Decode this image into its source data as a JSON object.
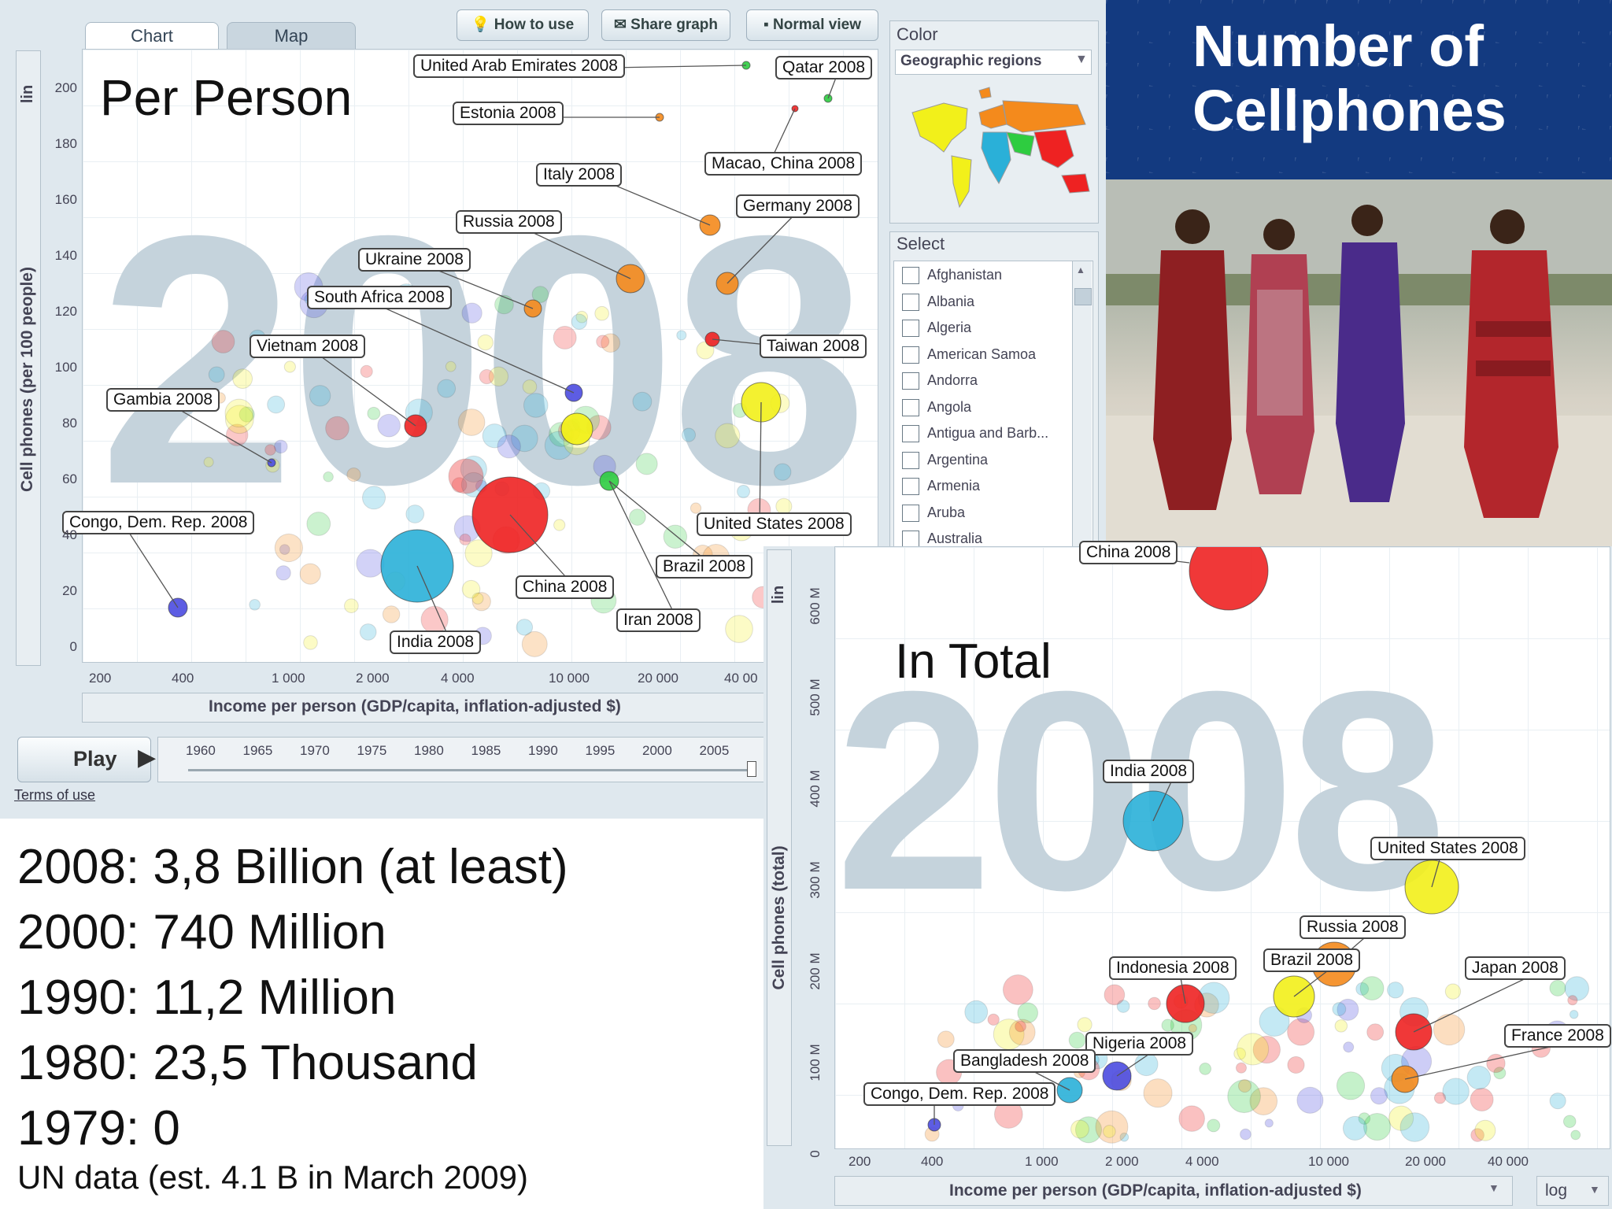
{
  "top_app": {
    "tabs": [
      "Chart",
      "Map"
    ],
    "toolbar": {
      "how_to_use": "How to use",
      "share_graph": "Share graph",
      "normal_view": "Normal view"
    },
    "title": "Per Person",
    "year_watermark": "2008",
    "y_axis_label": "Cell phones (per 100 people)",
    "y_scale": "lin",
    "x_axis_label": "Income per person (GDP/capita, inflation-adjusted $)",
    "y_ticks": [
      "200",
      "180",
      "160",
      "140",
      "120",
      "100",
      "80",
      "60",
      "40",
      "20",
      "0"
    ],
    "x_ticks": [
      "200",
      "400",
      "1 000",
      "2 000",
      "4 000",
      "10 000",
      "20 000",
      "40 00"
    ],
    "play_label": "Play",
    "timeline_years": [
      "1960",
      "1965",
      "1970",
      "1975",
      "1980",
      "1985",
      "1990",
      "1995",
      "2000",
      "2005"
    ],
    "terms": "Terms of use",
    "color_panel": {
      "title": "Color",
      "dropdown": "Geographic regions"
    },
    "select_panel": {
      "title": "Select",
      "countries": [
        "Afghanistan",
        "Albania",
        "Algeria",
        "American Samoa",
        "Andorra",
        "Angola",
        "Antigua and Barb...",
        "Argentina",
        "Armenia",
        "Aruba",
        "Australia"
      ]
    },
    "labels": [
      "United Arab Emirates 2008",
      "Qatar 2008",
      "Estonia 2008",
      "Macao, China 2008",
      "Italy 2008",
      "Germany 2008",
      "Russia 2008",
      "Ukraine 2008",
      "South Africa 2008",
      "Vietnam 2008",
      "Taiwan 2008",
      "Gambia 2008",
      "Congo, Dem. Rep. 2008",
      "United States 2008",
      "Brazil 2008",
      "China 2008",
      "Iran 2008",
      "India 2008"
    ]
  },
  "banner": {
    "line1": "Number of",
    "line2": "Cellphones"
  },
  "stats": [
    "2008: 3,8 Billion (at least)",
    "2000: 740 Million",
    "1990: 11,2 Million",
    "1980: 23,5 Thousand",
    "1979: 0"
  ],
  "note": "UN data (est. 4.1 B in March 2009)",
  "bottom_app": {
    "title": "In Total",
    "year_watermark": "2008",
    "y_axis_label": "Cell phones (total)",
    "y_scale": "lin",
    "y_ticks": [
      "600 M",
      "500 M",
      "400 M",
      "300 M",
      "200 M",
      "100 M",
      "0"
    ],
    "x_ticks": [
      "200",
      "400",
      "1 000",
      "2 000",
      "4 000",
      "10 000",
      "20 000",
      "40 000"
    ],
    "x_axis_label": "Income per person (GDP/capita, inflation-adjusted $)",
    "x_scale": "log",
    "labels": [
      "China 2008",
      "India 2008",
      "United States 2008",
      "Russia 2008",
      "Brazil 2008",
      "Indonesia 2008",
      "Japan 2008",
      "France 2008",
      "Nigeria 2008",
      "Bangladesh 2008",
      "Congo, Dem. Rep. 2008"
    ]
  }
}
